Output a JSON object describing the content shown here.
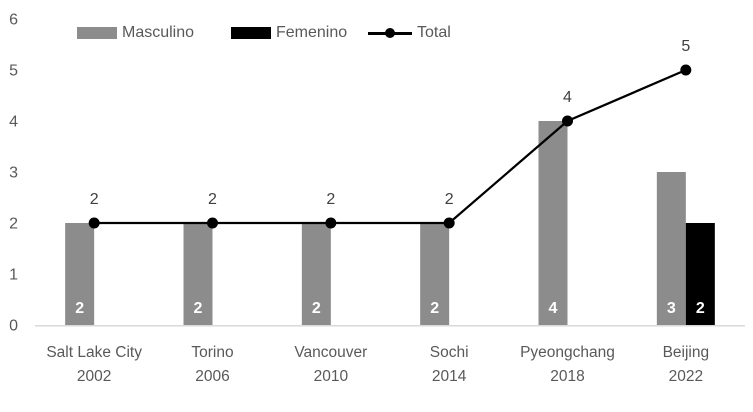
{
  "chart_data": {
    "type": "bar",
    "subtype": "clustered bars with overlaid total line",
    "title": "",
    "xlabel": "",
    "ylabel": "",
    "categories": [
      {
        "line1": "Salt Lake City",
        "line2": "2002"
      },
      {
        "line1": "Torino",
        "line2": "2006"
      },
      {
        "line1": "Vancouver",
        "line2": "2010"
      },
      {
        "line1": "Sochi",
        "line2": "2014"
      },
      {
        "line1": "Pyeongchang",
        "line2": "2018"
      },
      {
        "line1": "Beijing",
        "line2": "2022"
      }
    ],
    "series": [
      {
        "name": "Masculino",
        "type": "bar",
        "color": "#8c8c8c",
        "values": [
          2,
          2,
          2,
          2,
          4,
          3
        ],
        "data_labels": "inside-base, white bold"
      },
      {
        "name": "Femenino",
        "type": "bar",
        "color": "#000000",
        "values": [
          0,
          0,
          0,
          0,
          0,
          2
        ],
        "data_labels": "inside-base, white bold"
      },
      {
        "name": "Total",
        "type": "line",
        "color": "#000000",
        "values": [
          2,
          2,
          2,
          2,
          4,
          5
        ],
        "marker": "filled-circle",
        "data_labels": "above point"
      }
    ],
    "ylim": [
      0,
      6
    ],
    "yticks": [
      0,
      1,
      2,
      3,
      4,
      5,
      6
    ],
    "grid": "off",
    "legend_position": "top",
    "colors": {
      "axis_line": "#d9d9d9",
      "axis_text": "#595959",
      "total_label_text": "#404040",
      "bar_label_text": "#ffffff",
      "background": "#ffffff"
    }
  }
}
